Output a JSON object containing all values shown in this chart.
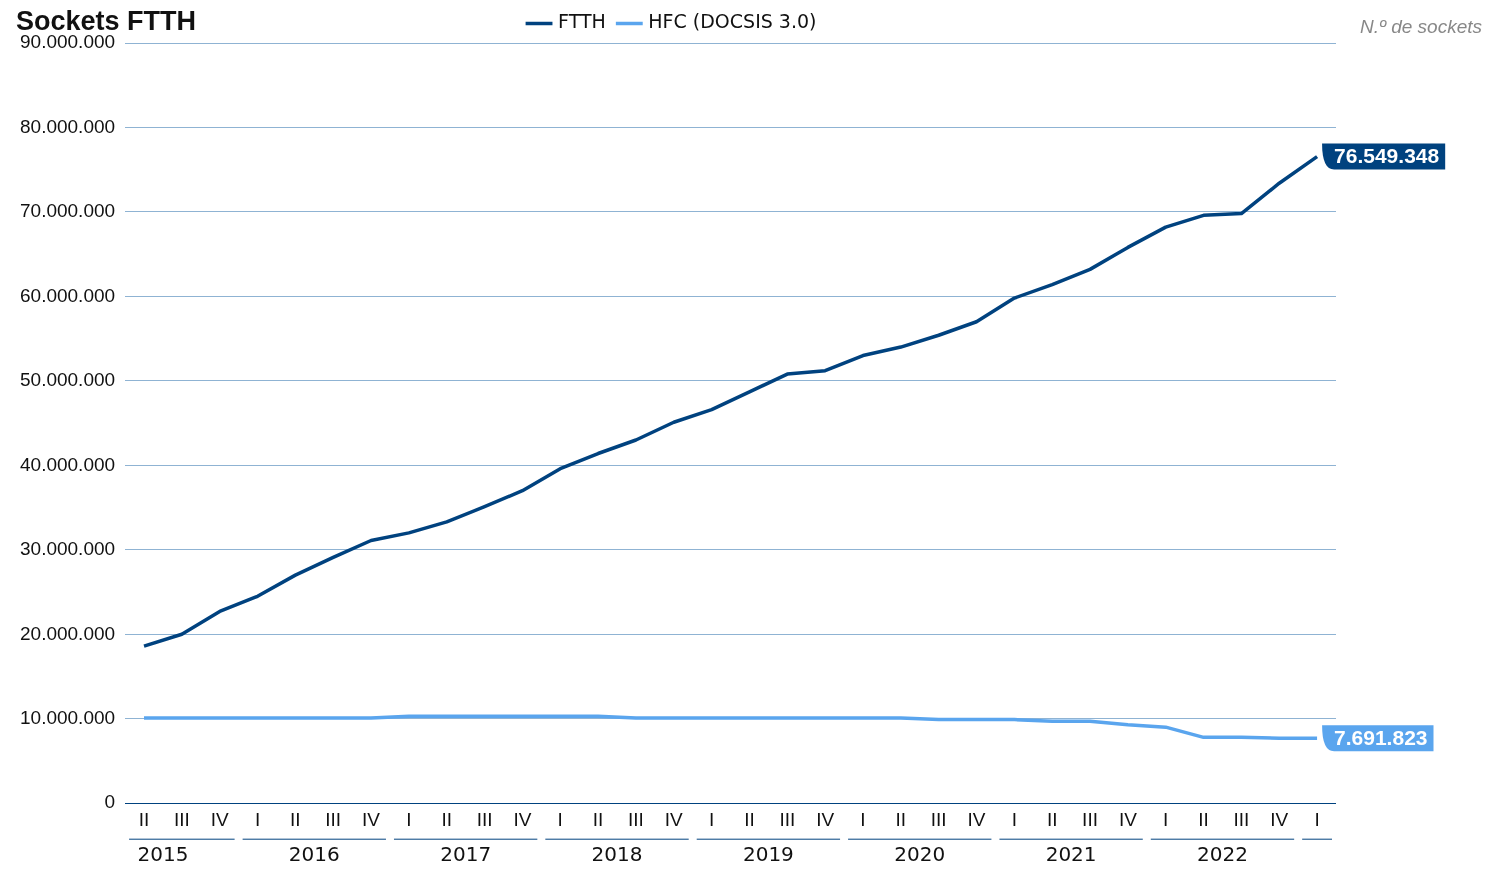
{
  "chart_data": {
    "type": "line",
    "title": "Sockets FTTH",
    "ylabel": "N.º de sockets",
    "categories": [
      "II",
      "III",
      "IV",
      "I",
      "II",
      "III",
      "IV",
      "I",
      "II",
      "III",
      "IV",
      "I",
      "II",
      "III",
      "IV",
      "I",
      "II",
      "III",
      "IV",
      "I",
      "II",
      "III",
      "IV",
      "I",
      "II",
      "III",
      "IV",
      "I",
      "II",
      "III",
      "IV",
      "I"
    ],
    "annotations": [
      "2015",
      "2016",
      "2017",
      "2018",
      "2019",
      "2020",
      "2021",
      "2022"
    ],
    "series": [
      {
        "name": "FTTH",
        "color": "#00427f",
        "values": [
          18600000,
          20000000,
          22700000,
          24500000,
          27000000,
          29100000,
          31100000,
          32000000,
          33300000,
          35100000,
          37000000,
          39600000,
          41400000,
          43000000,
          45100000,
          46600000,
          48700000,
          50800000,
          51200000,
          53000000,
          54000000,
          55400000,
          57000000,
          59800000,
          61400000,
          63200000,
          65800000,
          68200000,
          69600000,
          69800000,
          73400000,
          76549348
        ],
        "value_labels": [
          null,
          null,
          null,
          null,
          null,
          null,
          null,
          null,
          null,
          null,
          null,
          null,
          null,
          null,
          null,
          null,
          null,
          null,
          null,
          null,
          null,
          null,
          null,
          null,
          null,
          null,
          null,
          null,
          null,
          null,
          null,
          "76.549.348"
        ]
      },
      {
        "name": "HFC (DOCSIS 3.0)",
        "color": "#5aa5ee",
        "values": [
          10100000,
          10100000,
          10100000,
          10100000,
          10100000,
          10100000,
          10100000,
          10300000,
          10300000,
          10300000,
          10300000,
          10300000,
          10300000,
          10100000,
          10100000,
          10100000,
          10100000,
          10100000,
          10100000,
          10100000,
          10100000,
          9900000,
          9900000,
          9900000,
          9700000,
          9700000,
          9300000,
          9000000,
          7800000,
          7800000,
          7700000,
          7691823
        ],
        "value_labels": [
          null,
          null,
          null,
          null,
          null,
          null,
          null,
          null,
          null,
          null,
          null,
          null,
          null,
          null,
          null,
          null,
          null,
          null,
          null,
          null,
          null,
          null,
          null,
          null,
          null,
          null,
          null,
          null,
          null,
          null,
          null,
          "7.691.823"
        ]
      }
    ],
    "ylim": [
      0,
      90000000
    ],
    "yticks": [
      0,
      {
        "value": 10000000,
        "label": "10.000.000"
      },
      {
        "value": 20000000,
        "label": "20.000.000"
      },
      {
        "value": 30000000,
        "label": "30.000.000"
      },
      {
        "value": 40000000,
        "label": "40.000.000"
      },
      {
        "value": 50000000,
        "label": "50.000.000"
      },
      {
        "value": 60000000,
        "label": "60.000.000"
      },
      {
        "value": 70000000,
        "label": "70.000.000"
      },
      {
        "value": 80000000,
        "label": "80.000.000"
      },
      {
        "value": 90000000,
        "label": "90.000.000"
      }
    ],
    "grid": "y",
    "legend": "top",
    "marker": "none",
    "line_style": "solid"
  }
}
